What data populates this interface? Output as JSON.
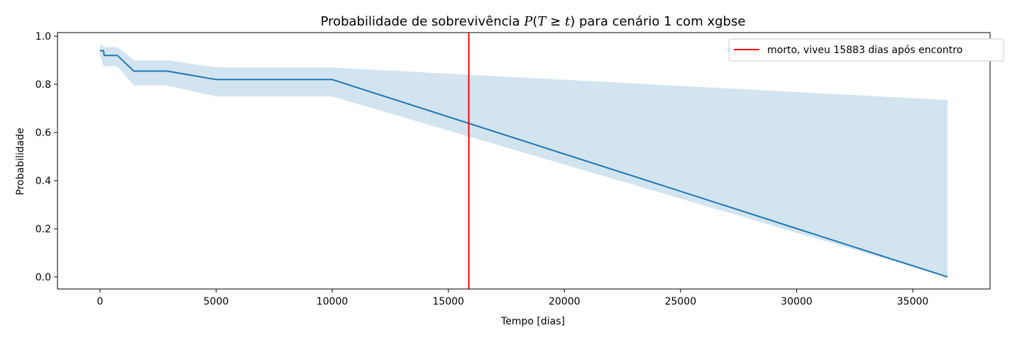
{
  "chart_data": {
    "type": "line",
    "title": "Probabilidade de sobrevivência P(T ≥ t) para cenário 1 com xgbse",
    "title_parts": {
      "prefix": "Probabilidade de sobrevivência ",
      "suffix": " para cenário 1 com xgbse"
    },
    "xlabel": "Tempo [dias]",
    "ylabel": "Probabilidade",
    "xlim": [
      -1830,
      38330
    ],
    "ylim": [
      -0.05,
      1.015
    ],
    "xticks": [
      0,
      5000,
      10000,
      15000,
      20000,
      25000,
      30000,
      35000
    ],
    "yticks": [
      0.0,
      0.2,
      0.4,
      0.6,
      0.8,
      1.0
    ],
    "xtick_labels": [
      "0",
      "5000",
      "10000",
      "15000",
      "20000",
      "25000",
      "30000",
      "35000"
    ],
    "ytick_labels": [
      "0.0",
      "0.2",
      "0.4",
      "0.6",
      "0.8",
      "1.0"
    ],
    "grid": false,
    "legend": {
      "placement": "top-right"
    },
    "series": [
      {
        "type": "line",
        "color": "#1f77b4",
        "x": [
          0,
          150,
          180,
          750,
          1460,
          2900,
          5000,
          10000,
          36500
        ],
        "y": [
          0.94,
          0.94,
          0.92,
          0.92,
          0.855,
          0.855,
          0.82,
          0.82,
          0.0
        ]
      }
    ],
    "band": {
      "color": "#1f77b4",
      "opacity": 0.2,
      "x": [
        0,
        60,
        150,
        180,
        750,
        1460,
        2900,
        5000,
        10000,
        36500
      ],
      "upper": [
        0.955,
        0.97,
        0.955,
        0.955,
        0.955,
        0.9,
        0.9,
        0.87,
        0.87,
        0.735
      ],
      "lower": [
        0.91,
        0.91,
        0.875,
        0.875,
        0.875,
        0.795,
        0.795,
        0.75,
        0.75,
        0.0
      ]
    },
    "vlines": [
      {
        "x": 15883,
        "color": "#ff0000",
        "name": "morto, viveu 15883 dias após encontro"
      }
    ]
  }
}
